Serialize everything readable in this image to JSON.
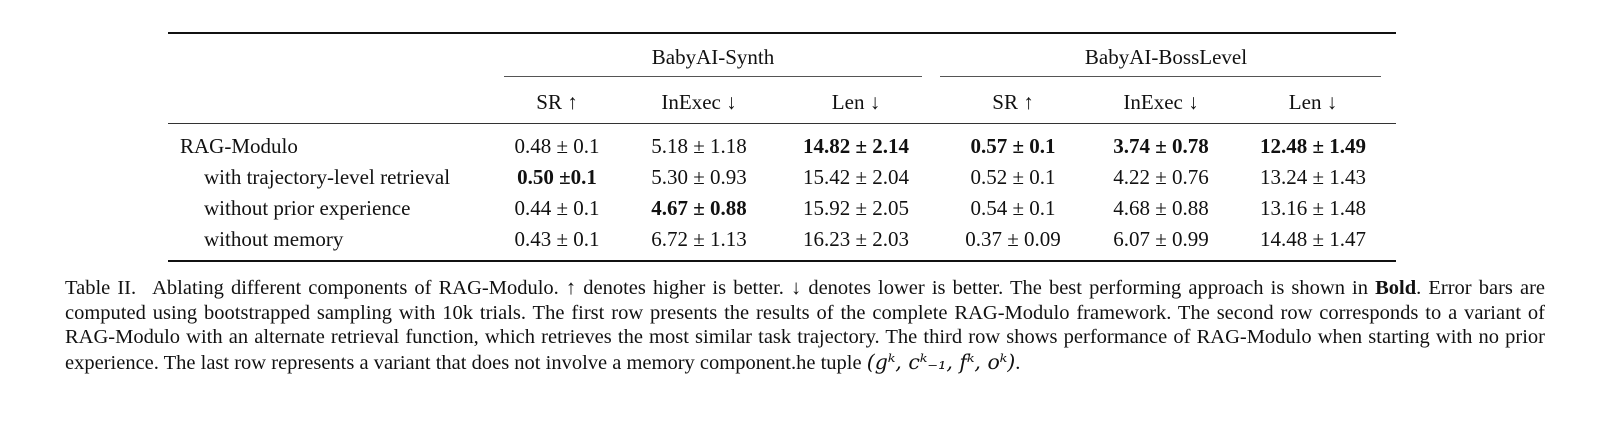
{
  "table": {
    "groups": [
      "BabyAI-Synth",
      "BabyAI-BossLevel"
    ],
    "metrics": [
      "SR ↑",
      "InExec ↓",
      "Len ↓",
      "SR ↑",
      "InExec ↓",
      "Len ↓"
    ],
    "rows": [
      {
        "label": "RAG-Modulo",
        "cells": [
          {
            "text": "0.48 ± 0.1",
            "bold": false
          },
          {
            "text": "5.18 ± 1.18",
            "bold": false
          },
          {
            "text": "14.82 ± 2.14",
            "bold": true
          },
          {
            "text": "0.57 ± 0.1",
            "bold": true
          },
          {
            "text": "3.74 ± 0.78",
            "bold": true
          },
          {
            "text": "12.48 ± 1.49",
            "bold": true
          }
        ]
      },
      {
        "label": "with trajectory-level retrieval",
        "cells": [
          {
            "text": "0.50 ±0.1",
            "bold": true
          },
          {
            "text": "5.30 ± 0.93",
            "bold": false
          },
          {
            "text": "15.42 ± 2.04",
            "bold": false
          },
          {
            "text": "0.52 ± 0.1",
            "bold": false
          },
          {
            "text": "4.22 ± 0.76",
            "bold": false
          },
          {
            "text": "13.24 ± 1.43",
            "bold": false
          }
        ]
      },
      {
        "label": "without prior experience",
        "cells": [
          {
            "text": "0.44 ± 0.1",
            "bold": false
          },
          {
            "text": "4.67 ± 0.88",
            "bold": true
          },
          {
            "text": "15.92 ± 2.05",
            "bold": false
          },
          {
            "text": "0.54 ± 0.1",
            "bold": false
          },
          {
            "text": "4.68 ± 0.88",
            "bold": false
          },
          {
            "text": "13.16 ± 1.48",
            "bold": false
          }
        ]
      },
      {
        "label": "without memory",
        "cells": [
          {
            "text": "0.43 ± 0.1",
            "bold": false
          },
          {
            "text": "6.72 ± 1.13",
            "bold": false
          },
          {
            "text": "16.23 ± 2.03",
            "bold": false
          },
          {
            "text": "0.37 ± 0.09",
            "bold": false
          },
          {
            "text": "6.07 ± 0.99",
            "bold": false
          },
          {
            "text": "14.48 ± 1.47",
            "bold": false
          }
        ]
      }
    ]
  },
  "caption": {
    "label": "Table II.",
    "text_1": "Ablating different components of RAG-Modulo. ↑ denotes higher is better. ↓ denotes lower is better. The best performing approach is shown in",
    "bold_word": "Bold",
    "text_2": ". Error bars are computed using bootstrapped sampling with 10k trials. The first row presents the results of the complete RAG-Modulo framework. The second row corresponds to a variant of RAG-Modulo with an alternate retrieval function, which retrieves the most similar task trajectory. The third row shows performance of RAG-Modulo when starting with no prior experience. The last row represents a variant that does not involve a memory component.he tuple",
    "tuple": "(gᵏ, cᵏ₋₁, fᵏ, oᵏ)",
    "end": "."
  }
}
